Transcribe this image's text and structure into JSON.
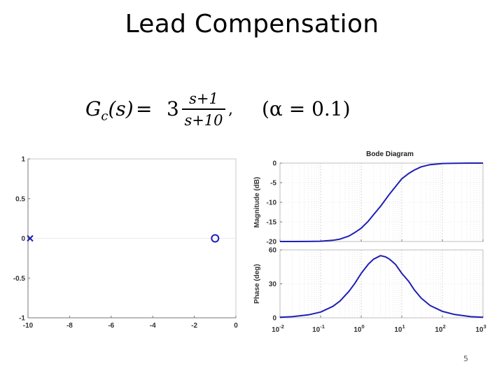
{
  "slide": {
    "title": "Lead Compensation",
    "page_number": "5"
  },
  "formula": {
    "lhs_symbol": "G",
    "lhs_subscript": "c",
    "lhs_argument": "(s)",
    "equals": "=",
    "gain": "3",
    "numerator": "s+1",
    "denominator": "s+10",
    "comma": ",",
    "alpha_note": "(α = 0.1)"
  },
  "colors": {
    "curve": "#1f1fb4",
    "marker": "#1f1fb4",
    "axis": "#777777",
    "grid": "#d8d8d8"
  },
  "chart_data": [
    {
      "type": "scatter",
      "xlim": [
        -10,
        0
      ],
      "ylim": [
        -1,
        1
      ],
      "x_ticks": [
        "-10",
        "-8",
        "-6",
        "-4",
        "-2",
        "0"
      ],
      "y_ticks": [
        "1",
        "0.5",
        "0",
        "-0.5",
        "-1"
      ],
      "points": [
        {
          "x": -10,
          "y": 0,
          "marker": "x"
        },
        {
          "x": -1,
          "y": 0,
          "marker": "o"
        }
      ],
      "grid": false
    },
    {
      "type": "line",
      "title": "Bode Diagram",
      "xscale": "log",
      "xlim": [
        0.01,
        1000
      ],
      "x_ticks": [
        {
          "base": "10",
          "exp": "-2"
        },
        {
          "base": "10",
          "exp": "-1"
        },
        {
          "base": "10",
          "exp": "0"
        },
        {
          "base": "10",
          "exp": "1"
        },
        {
          "base": "10",
          "exp": "2"
        },
        {
          "base": "10",
          "exp": "3"
        }
      ],
      "magnitude": {
        "ylabel": "Magnitude (dB)",
        "ylim": [
          -20,
          0
        ],
        "y_ticks": [
          "0",
          "-5",
          "-10",
          "-15",
          "-20"
        ],
        "x": [
          0.01,
          0.02,
          0.05,
          0.1,
          0.2,
          0.3,
          0.5,
          0.7,
          1,
          1.5,
          2,
          3,
          5,
          7,
          10,
          15,
          20,
          30,
          50,
          100,
          200,
          500,
          1000
        ],
        "y": [
          -20,
          -20,
          -19.98,
          -19.92,
          -19.7,
          -19.4,
          -18.6,
          -17.7,
          -16.6,
          -14.8,
          -13.2,
          -11.0,
          -7.9,
          -6.0,
          -4.0,
          -2.6,
          -1.8,
          -0.95,
          -0.4,
          -0.1,
          -0.03,
          0,
          0
        ]
      },
      "phase": {
        "ylabel": "Phase (deg)",
        "ylim": [
          0,
          60
        ],
        "y_ticks": [
          "60",
          "30",
          "0"
        ],
        "x": [
          0.01,
          0.02,
          0.05,
          0.1,
          0.2,
          0.3,
          0.5,
          0.7,
          1,
          1.5,
          2,
          3,
          4,
          5,
          7,
          10,
          15,
          20,
          30,
          50,
          100,
          200,
          500,
          1000
        ],
        "y": [
          0.5,
          1.0,
          2.6,
          5.1,
          10.1,
          14.8,
          23.4,
          30.5,
          39.3,
          47.4,
          51.8,
          54.9,
          53.8,
          51.8,
          47.2,
          39.3,
          31.9,
          25.0,
          17.4,
          10.8,
          5.7,
          2.9,
          1.0,
          0.5
        ]
      },
      "grid": true
    }
  ]
}
